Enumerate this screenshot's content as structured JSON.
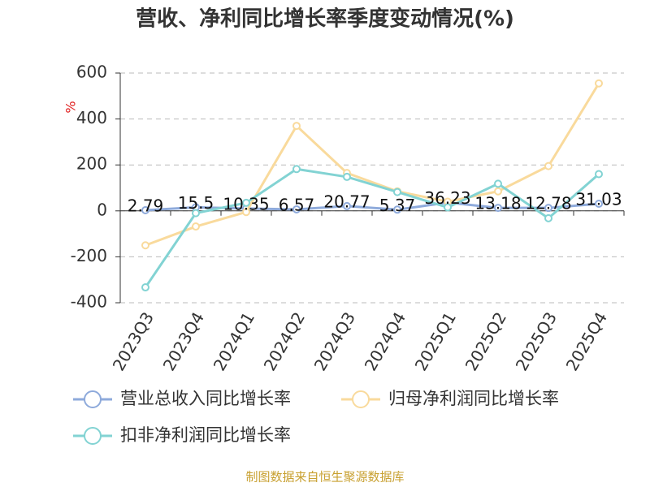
{
  "chart_data": {
    "type": "line",
    "title": "营收、净利同比增长率季度变动情况(%)",
    "y_unit": "%",
    "source": "制图数据来自恒生聚源数据库",
    "categories": [
      "2023Q3",
      "2023Q4",
      "2024Q1",
      "2024Q2",
      "2024Q3",
      "2024Q4",
      "2025Q1",
      "2025Q2",
      "2025Q3",
      "2025Q4"
    ],
    "series": [
      {
        "name": "营业总收入同比增长率",
        "color": "#8eaadb",
        "labels": true,
        "values": [
          2.79,
          15.5,
          10.35,
          6.57,
          20.77,
          5.37,
          36.23,
          13.18,
          12.78,
          31.03
        ]
      },
      {
        "name": "归母净利润同比增长率",
        "color": "#f9da9c",
        "labels": false,
        "values": [
          -150,
          -68,
          -5,
          370,
          165,
          85,
          40,
          85,
          195,
          555
        ]
      },
      {
        "name": "扣非净利润同比增长率",
        "color": "#82d3d3",
        "labels": false,
        "values": [
          -333,
          -10,
          35,
          182,
          148,
          82,
          15,
          118,
          -32,
          160
        ]
      }
    ],
    "ylim": [
      -400,
      600
    ],
    "yticks": [
      600,
      400,
      200,
      0,
      -200,
      -400
    ],
    "grid": true
  }
}
